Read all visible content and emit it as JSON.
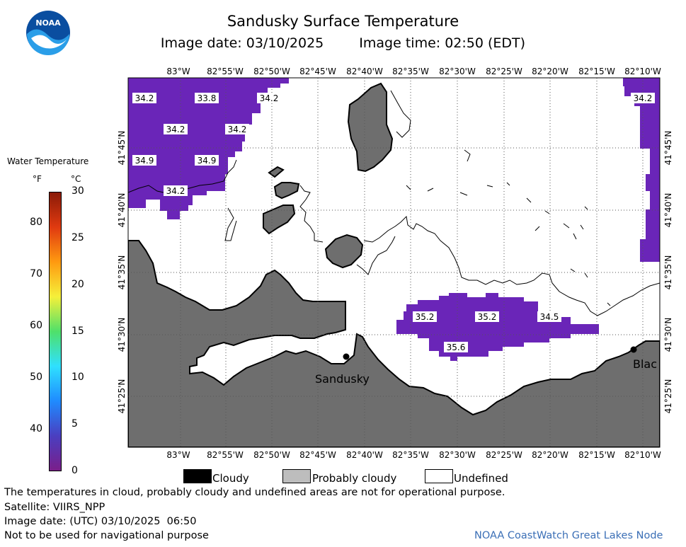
{
  "header": {
    "title": "Sandusky Surface Temperature",
    "image_date": "Image date: 03/10/2025",
    "image_time": "Image time: 02:50 (EDT)"
  },
  "logo": {
    "text": "NOAA"
  },
  "legend": {
    "title": "Water Temperature",
    "unit_f": "°F",
    "unit_c": "°C",
    "f_ticks": [
      "80",
      "70",
      "60",
      "50",
      "40"
    ],
    "c_ticks": [
      "30",
      "25",
      "20",
      "15",
      "10",
      "5",
      "0"
    ],
    "colors": [
      "#7a1e8a",
      "#4a3fc0",
      "#1f8bff",
      "#2fe0ff",
      "#4fe06a",
      "#f5f03a",
      "#ff9a10",
      "#e03a10",
      "#8a1a08"
    ]
  },
  "map": {
    "lon_labels": [
      "83°W",
      "82°55'W",
      "82°50'W",
      "82°45'W",
      "82°40'W",
      "82°35'W",
      "82°30'W",
      "82°25'W",
      "82°20'W",
      "82°15'W",
      "82°10'W"
    ],
    "lat_labels": [
      "41°45'N",
      "41°40'N",
      "41°35'N",
      "41°30'N",
      "41°25'N"
    ],
    "temp_labels": [
      "34.2",
      "33.8",
      "34.2",
      "34.2",
      "34.2",
      "34.2",
      "34.9",
      "34.9",
      "34.2",
      "35.2",
      "35.2",
      "34.5",
      "35.6"
    ],
    "places": [
      "Sandusky",
      "Blac"
    ],
    "colors": {
      "land": "#6e6e6e",
      "water_temp": "#6a25b8",
      "undefined": "#ffffff"
    }
  },
  "key": {
    "cloudy": "Cloudy",
    "probably_cloudy": "Probably cloudy",
    "undefined": "Undefined",
    "colors": {
      "cloudy": "#000000",
      "probably_cloudy": "#bdbdbd",
      "undefined": "#ffffff"
    }
  },
  "footer": {
    "line1": "The temperatures in cloud, probably cloudy and undefined areas are not for operational purpose.",
    "line2": "Satellite: VIIRS_NPP",
    "line3": "Image date: (UTC) 03/10/2025  06:50",
    "line4": "Not to be used for navigational purpose",
    "credit": "NOAA CoastWatch Great Lakes Node"
  }
}
